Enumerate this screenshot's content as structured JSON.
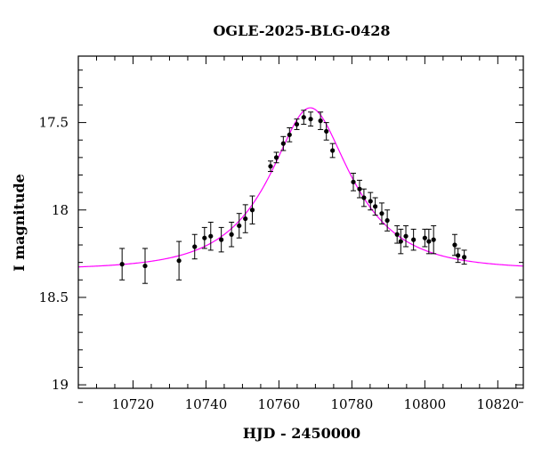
{
  "chart_data": {
    "type": "scatter",
    "title": "OGLE-2025-BLG-0428",
    "xlabel": "HJD - 2450000",
    "ylabel": "I magnitude",
    "xlim": [
      10705,
      10827
    ],
    "ylim": [
      19.02,
      17.12
    ],
    "y_inverted": true,
    "grid": false,
    "x_ticks": [
      10720,
      10740,
      10760,
      10780,
      10800,
      10820
    ],
    "x_tick_labels": [
      "10720",
      "10740",
      "10760",
      "10780",
      "10800",
      "10820"
    ],
    "y_ticks": [
      17.5,
      18,
      18.5,
      19
    ],
    "y_tick_labels": [
      "17.5",
      "18",
      "18.5",
      "19"
    ],
    "series": [
      {
        "type": "scatter",
        "color": "#000000",
        "points": [
          {
            "x": 10717.0,
            "y": 18.31,
            "err": 0.09
          },
          {
            "x": 10723.3,
            "y": 18.32,
            "err": 0.1
          },
          {
            "x": 10732.6,
            "y": 18.29,
            "err": 0.11
          },
          {
            "x": 10736.9,
            "y": 18.21,
            "err": 0.07
          },
          {
            "x": 10739.6,
            "y": 18.16,
            "err": 0.06
          },
          {
            "x": 10741.3,
            "y": 18.15,
            "err": 0.08
          },
          {
            "x": 10744.2,
            "y": 18.17,
            "err": 0.07
          },
          {
            "x": 10747.0,
            "y": 18.14,
            "err": 0.07
          },
          {
            "x": 10749.1,
            "y": 18.09,
            "err": 0.07
          },
          {
            "x": 10750.8,
            "y": 18.05,
            "err": 0.08
          },
          {
            "x": 10752.7,
            "y": 18.0,
            "err": 0.08
          },
          {
            "x": 10757.7,
            "y": 17.75,
            "err": 0.03
          },
          {
            "x": 10759.3,
            "y": 17.7,
            "err": 0.03
          },
          {
            "x": 10761.2,
            "y": 17.62,
            "err": 0.04
          },
          {
            "x": 10762.9,
            "y": 17.57,
            "err": 0.04
          },
          {
            "x": 10764.9,
            "y": 17.51,
            "err": 0.03
          },
          {
            "x": 10766.8,
            "y": 17.47,
            "err": 0.04
          },
          {
            "x": 10768.7,
            "y": 17.48,
            "err": 0.04
          },
          {
            "x": 10771.4,
            "y": 17.49,
            "err": 0.05
          },
          {
            "x": 10773.0,
            "y": 17.55,
            "err": 0.05
          },
          {
            "x": 10774.7,
            "y": 17.66,
            "err": 0.04
          },
          {
            "x": 10780.4,
            "y": 17.84,
            "err": 0.05
          },
          {
            "x": 10782.1,
            "y": 17.88,
            "err": 0.05
          },
          {
            "x": 10783.3,
            "y": 17.93,
            "err": 0.05
          },
          {
            "x": 10785.1,
            "y": 17.95,
            "err": 0.05
          },
          {
            "x": 10786.4,
            "y": 17.98,
            "err": 0.05
          },
          {
            "x": 10788.2,
            "y": 18.02,
            "err": 0.06
          },
          {
            "x": 10789.7,
            "y": 18.06,
            "err": 0.06
          },
          {
            "x": 10792.4,
            "y": 18.14,
            "err": 0.05
          },
          {
            "x": 10793.4,
            "y": 18.18,
            "err": 0.07
          },
          {
            "x": 10794.8,
            "y": 18.15,
            "err": 0.06
          },
          {
            "x": 10796.9,
            "y": 18.17,
            "err": 0.06
          },
          {
            "x": 10800.0,
            "y": 18.16,
            "err": 0.05
          },
          {
            "x": 10801.1,
            "y": 18.18,
            "err": 0.07
          },
          {
            "x": 10802.4,
            "y": 18.17,
            "err": 0.08
          },
          {
            "x": 10808.2,
            "y": 18.2,
            "err": 0.06
          },
          {
            "x": 10809.1,
            "y": 18.26,
            "err": 0.04
          },
          {
            "x": 10810.8,
            "y": 18.27,
            "err": 0.04
          }
        ]
      },
      {
        "type": "line",
        "color": "#ff00ff",
        "model": "paczynski",
        "params": {
          "t0": 10768.6,
          "tE": 20.0,
          "u0": 0.46,
          "I_base": 18.34
        }
      }
    ]
  }
}
